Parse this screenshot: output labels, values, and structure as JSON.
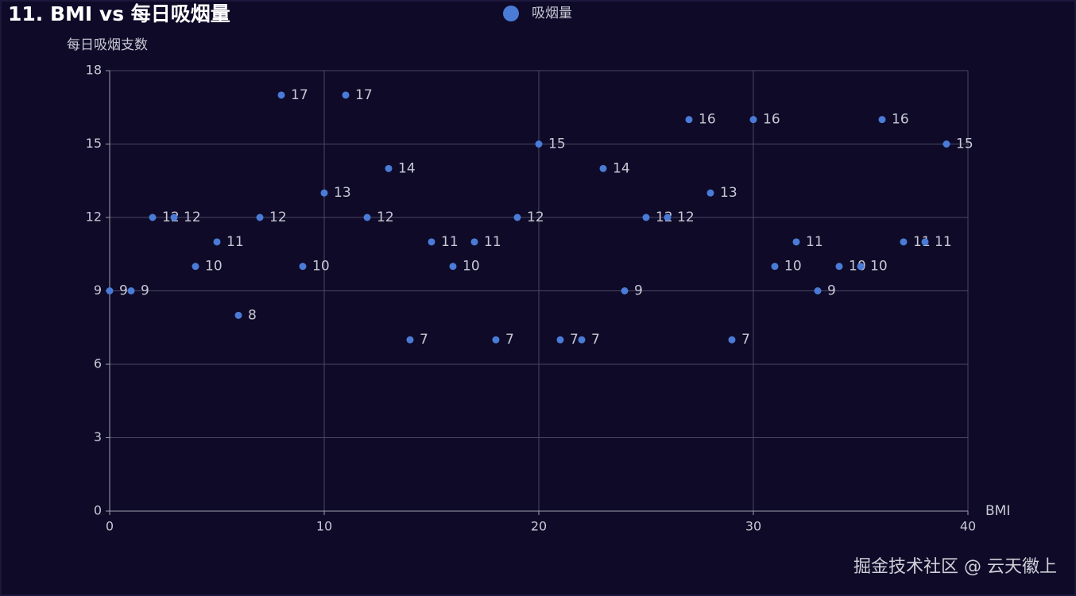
{
  "chart_data": {
    "type": "scatter",
    "title": "11. BMI vs 每日吸烟量",
    "xlabel": "BMI",
    "ylabel": "每日吸烟支数",
    "x": [
      0,
      1,
      2,
      3,
      4,
      5,
      6,
      7,
      8,
      9,
      10,
      11,
      12,
      13,
      14,
      15,
      16,
      17,
      18,
      19,
      20,
      21,
      22,
      23,
      24,
      25,
      26,
      27,
      28,
      29,
      30,
      31,
      32,
      33,
      34,
      35,
      36,
      37,
      38,
      39
    ],
    "series": [
      {
        "name": "吸烟量",
        "color": "#4a7bd6",
        "values": [
          9,
          9,
          12,
          12,
          10,
          11,
          8,
          12,
          17,
          10,
          13,
          17,
          12,
          14,
          7,
          11,
          10,
          11,
          7,
          12,
          15,
          7,
          7,
          14,
          9,
          12,
          12,
          16,
          13,
          7,
          16,
          10,
          11,
          9,
          10,
          10,
          16,
          11,
          11,
          15
        ]
      }
    ],
    "xlim": [
      0,
      40
    ],
    "xticks": [
      0,
      10,
      20,
      30,
      40
    ],
    "ylim": [
      0,
      18
    ],
    "yticks": [
      0,
      3,
      6,
      9,
      12,
      15,
      18
    ],
    "grid": true,
    "legend": "top"
  },
  "watermark": "掘金技术社区 @ 云天徽上"
}
